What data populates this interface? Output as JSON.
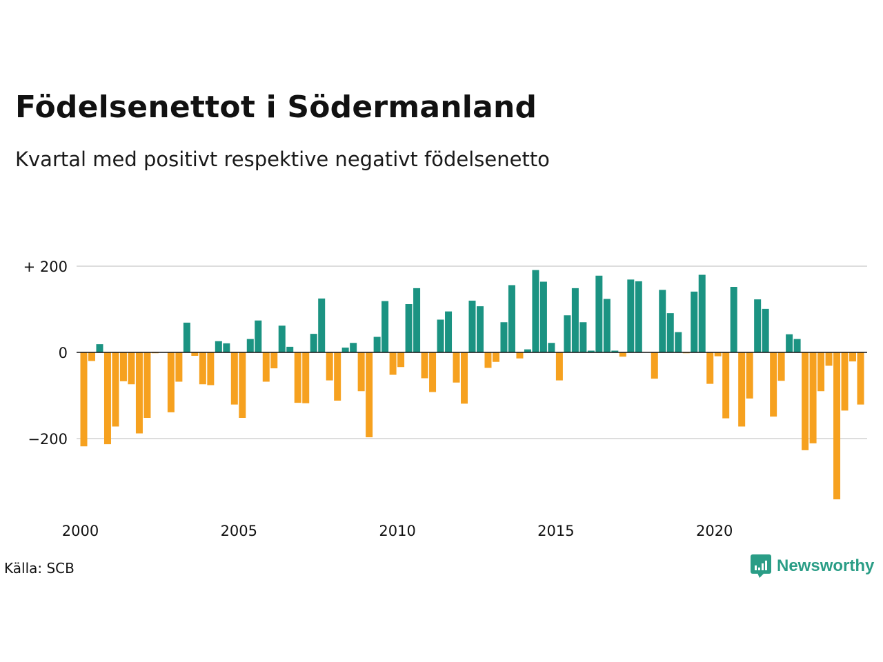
{
  "title": "Födelsenettot i Södermanland",
  "subtitle": "Kvartal med positivt respektive negativt födelsenetto",
  "source": "Källa: SCB",
  "brand": "Newsworthy",
  "colors": {
    "positive": "#1b9382",
    "negative": "#f6a11f",
    "grid": "#dddddd",
    "brand": "#2a9d86"
  },
  "chart_data": {
    "type": "bar",
    "xlabel": "",
    "ylabel": "",
    "ylim": [
      -350,
      200
    ],
    "yticks": [
      {
        "value": 200,
        "label": "+ 200"
      },
      {
        "value": 0,
        "label": "0"
      },
      {
        "value": -200,
        "label": "−200"
      }
    ],
    "xticks": [
      "2000",
      "2005",
      "2010",
      "2015",
      "2020"
    ],
    "x_start_year": 2000,
    "grid": true,
    "series": [
      {
        "values": [
          -218,
          -20,
          19,
          -213,
          -172,
          -67,
          -74,
          -188,
          -152,
          -2,
          0,
          -139,
          -68,
          69,
          -8,
          -74,
          -76,
          26,
          21,
          -121,
          -152,
          31,
          74,
          -68,
          -37,
          62,
          13,
          -117,
          -118,
          43,
          125,
          -65,
          -112,
          11,
          22,
          -90,
          -197,
          36,
          119,
          -52,
          -34,
          112,
          149,
          -60,
          -92,
          76,
          95,
          -70,
          -119,
          120,
          107,
          -36,
          -22,
          70,
          156,
          -14,
          7,
          191,
          164,
          22,
          -65,
          86,
          149,
          70,
          4,
          178,
          124,
          4,
          -10,
          169,
          165,
          0,
          -61,
          145,
          91,
          47,
          -2,
          141,
          180,
          -73,
          -9,
          -153,
          152,
          -172,
          -107,
          123,
          101,
          -149,
          -66,
          42,
          31,
          -227,
          -211,
          -90,
          -31,
          -341,
          -135,
          -21,
          -121
        ]
      }
    ]
  }
}
